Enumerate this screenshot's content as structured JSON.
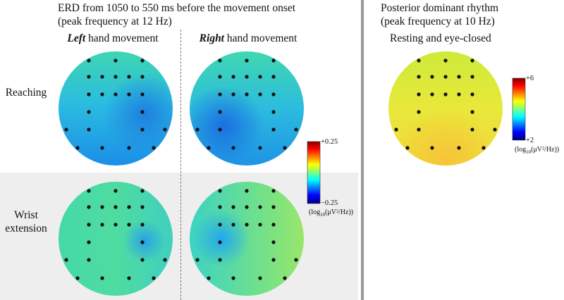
{
  "figure": {
    "left_panel": {
      "title_line1": "ERD from 1050 to 550 ms before the movement onset",
      "title_line2": "(peak frequency at 12 Hz)",
      "column_left_emph": "Left",
      "column_left_rest": " hand movement",
      "column_right_emph": "Right",
      "column_right_rest": " hand movement",
      "row1_label": "Reaching",
      "row2_label_line1": "Wrist",
      "row2_label_line2": "extension",
      "colorbar": {
        "max_label": "+0.25",
        "min_label": "−0.25",
        "unit_pre": "(log",
        "unit_sub": "10",
        "unit_post": "(μV²/Hz))"
      }
    },
    "right_panel": {
      "title_line1": "Posterior dominant rhythm",
      "title_line2": "(peak frequency at 10 Hz)",
      "condition": "Resting and eye-closed",
      "colorbar": {
        "max_label": "+6",
        "min_label": "+2",
        "unit_pre": "(log",
        "unit_sub": "10",
        "unit_post": "(μV²/Hz))"
      }
    },
    "colors": {
      "row2_background": "#eeeeee",
      "divider": "#9a9a9a",
      "dashed_divider": "#777777",
      "electrode": "#111111"
    }
  }
}
